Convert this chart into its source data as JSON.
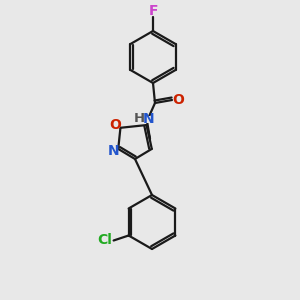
{
  "bg_color": "#e8e8e8",
  "bond_color": "#1a1a1a",
  "bond_width": 1.6,
  "F_color": "#cc44cc",
  "O_color": "#cc2200",
  "N_color": "#2255cc",
  "Cl_color": "#22aa22",
  "figsize": [
    3.0,
    3.0
  ],
  "dpi": 100,
  "xlim": [
    0,
    300
  ],
  "ylim": [
    0,
    300
  ]
}
